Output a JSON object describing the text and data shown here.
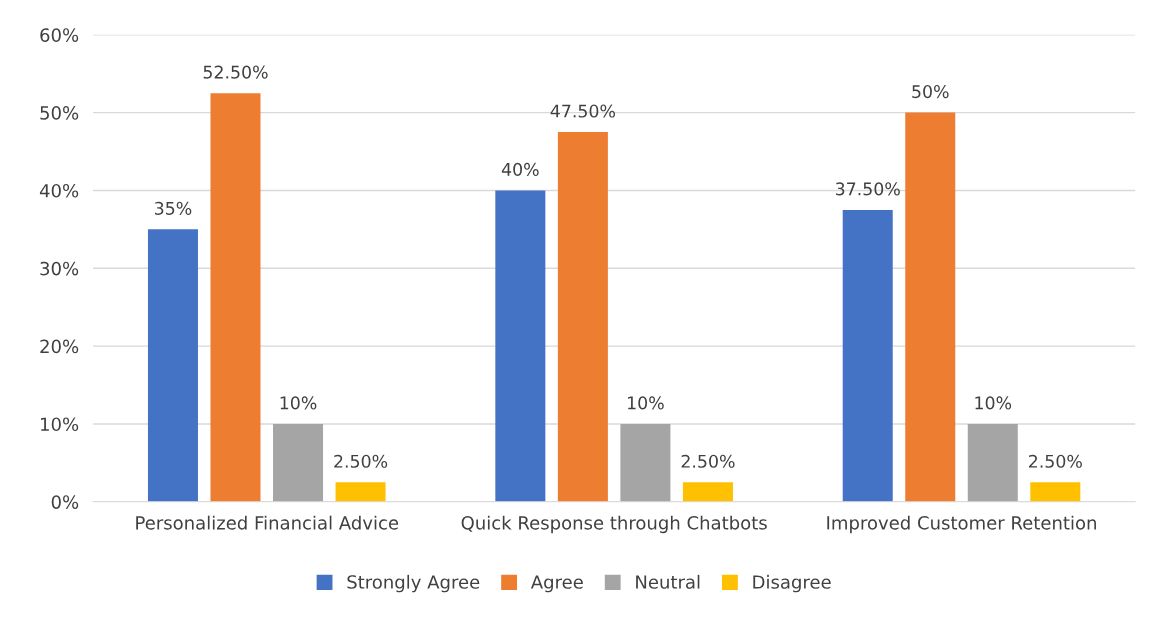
{
  "chart_data": {
    "type": "bar",
    "categories": [
      "Personalized Financial Advice",
      "Quick Response through Chatbots",
      "Improved Customer Retention"
    ],
    "series": [
      {
        "name": "Strongly Agree",
        "color": "#4472c4",
        "values": [
          35,
          40,
          37.5
        ],
        "value_labels": [
          "35%",
          "40%",
          "37.50%"
        ]
      },
      {
        "name": "Agree",
        "color": "#ed7d31",
        "values": [
          52.5,
          47.5,
          50
        ],
        "value_labels": [
          "52.50%",
          "47.50%",
          "50%"
        ]
      },
      {
        "name": "Neutral",
        "color": "#a5a5a5",
        "values": [
          10,
          10,
          10
        ],
        "value_labels": [
          "10%",
          "10%",
          "10%"
        ]
      },
      {
        "name": "Disagree",
        "color": "#ffc000",
        "values": [
          2.5,
          2.5,
          2.5
        ],
        "value_labels": [
          "2.50%",
          "2.50%",
          "2.50%"
        ]
      }
    ],
    "ylim": [
      0,
      60
    ],
    "yticks": [
      {
        "value": 0,
        "label": "0%"
      },
      {
        "value": 10,
        "label": "10%"
      },
      {
        "value": 20,
        "label": "20%"
      },
      {
        "value": 30,
        "label": "30%"
      },
      {
        "value": 40,
        "label": "40%"
      },
      {
        "value": 50,
        "label": "50%"
      },
      {
        "value": 60,
        "label": "60%"
      }
    ],
    "grid": "y",
    "legend": "bottom"
  }
}
